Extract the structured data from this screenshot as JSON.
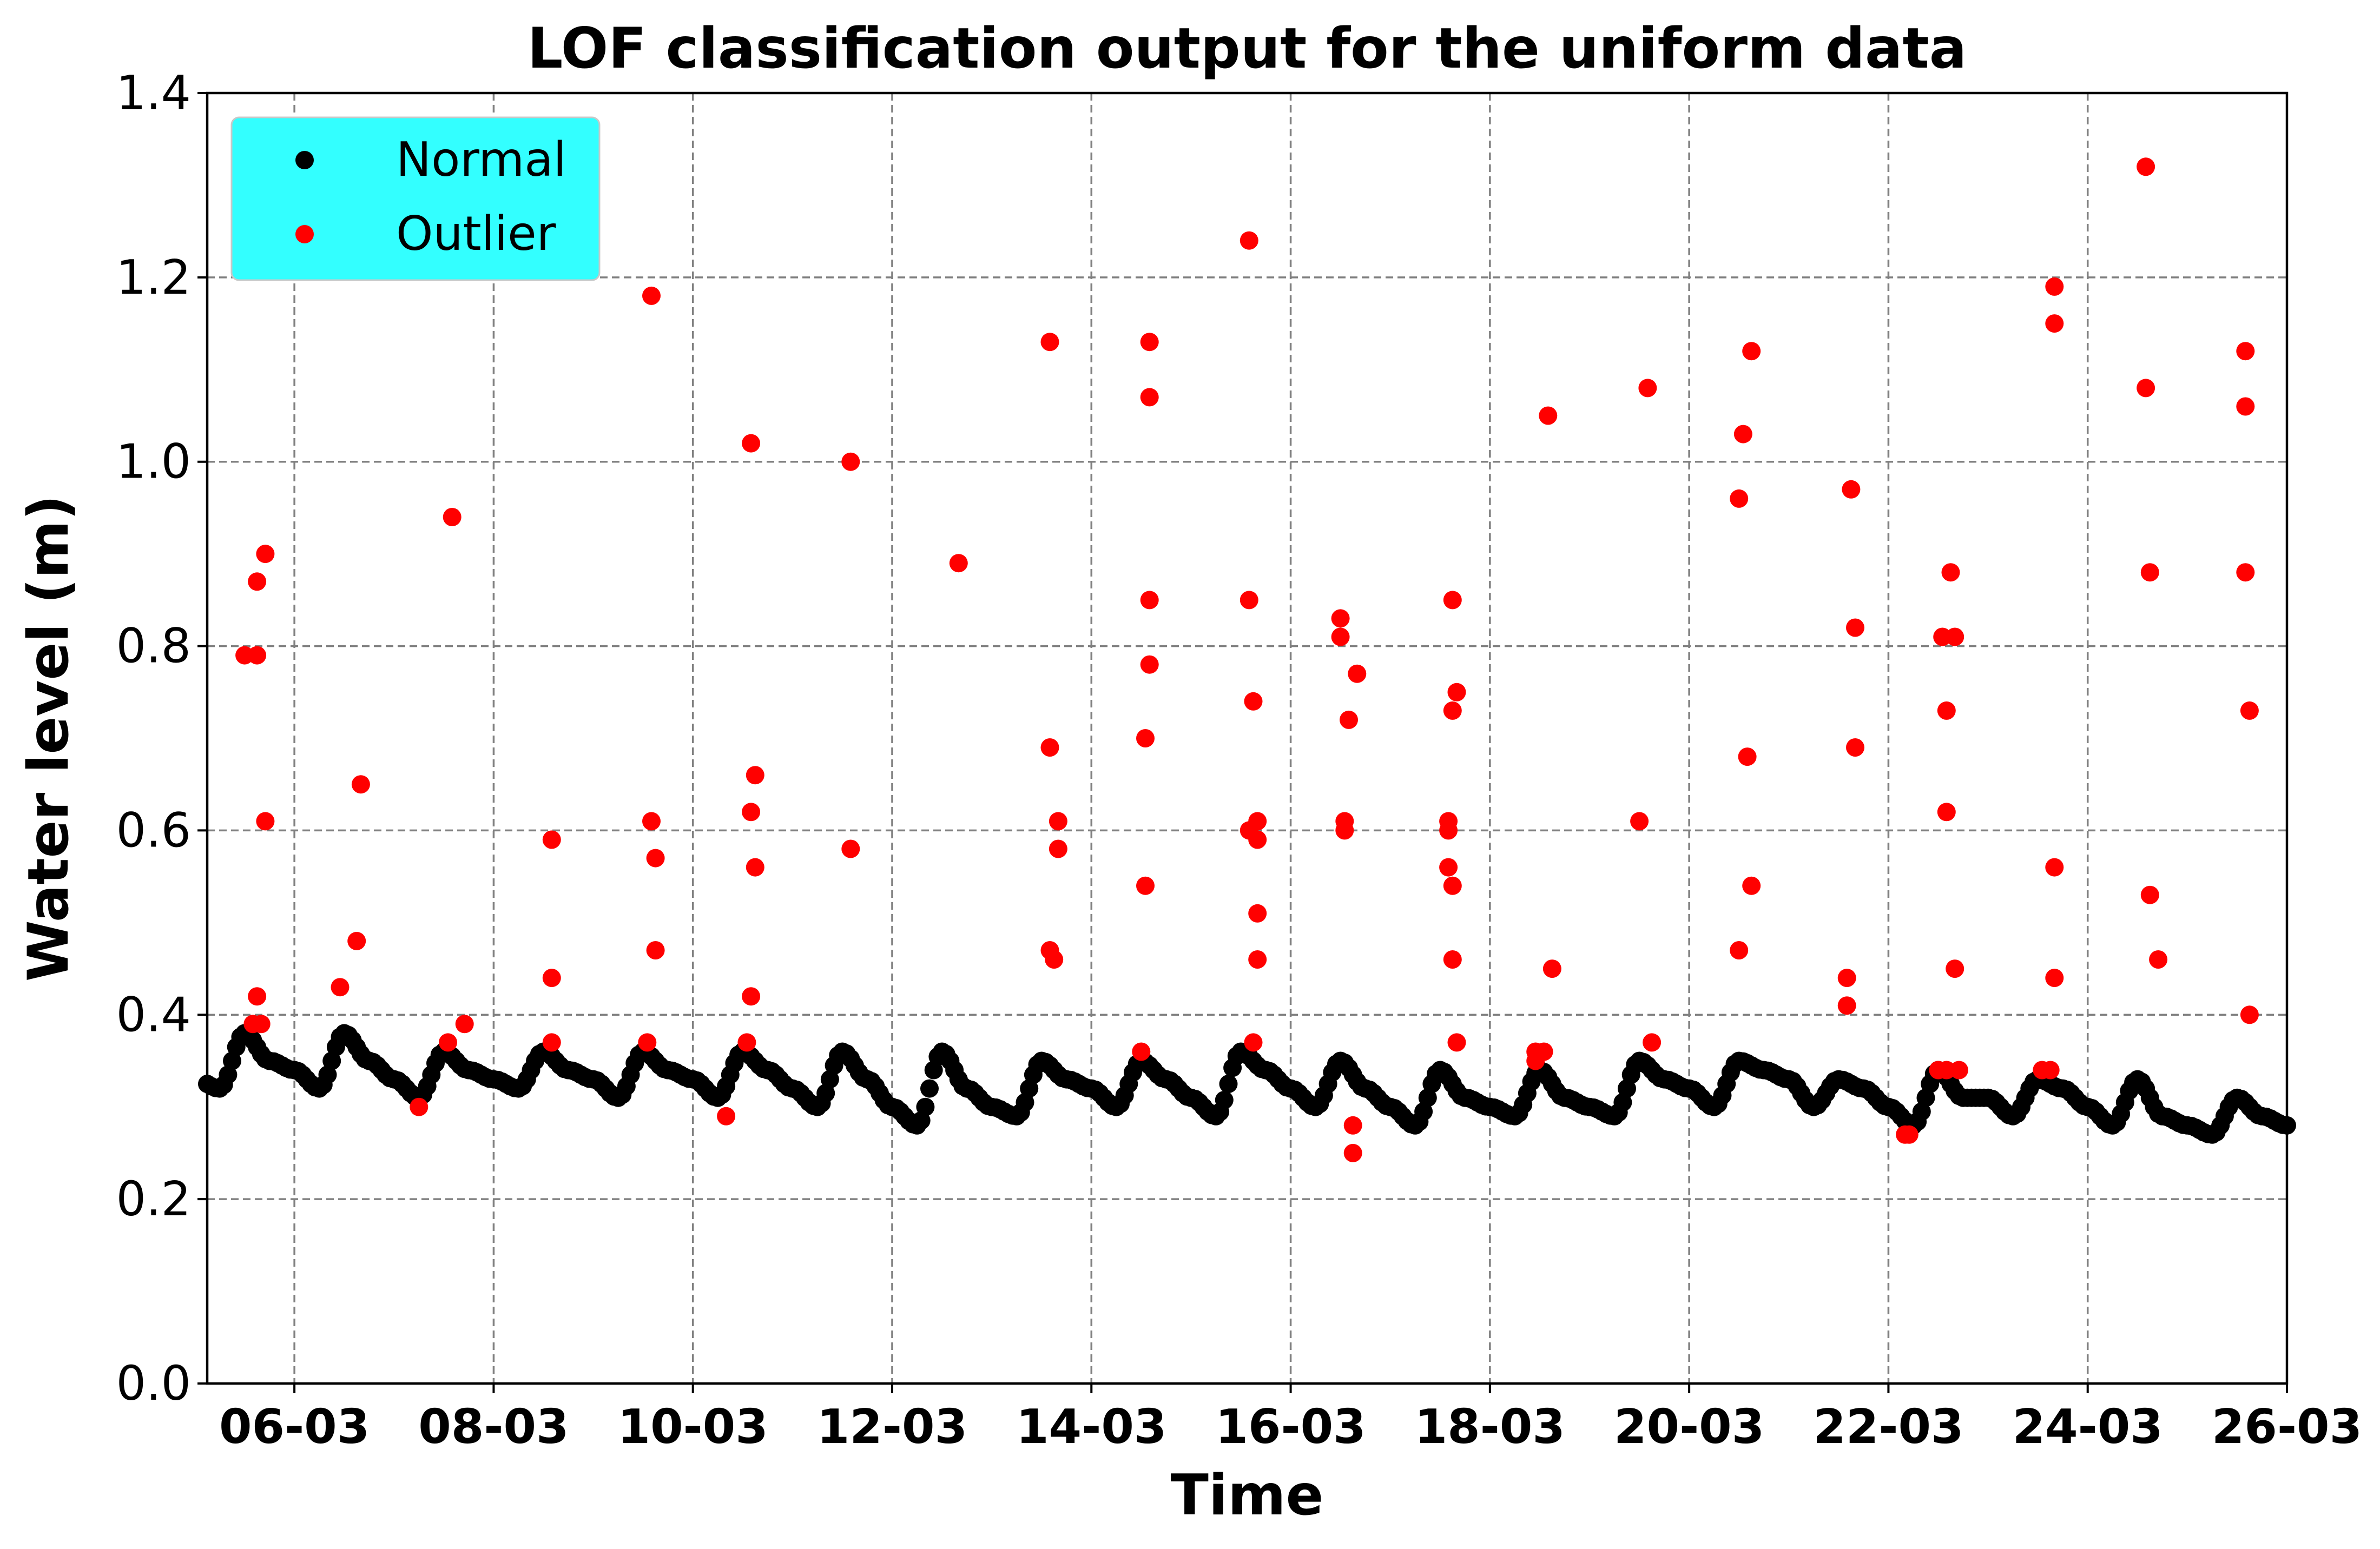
{
  "chart_data": {
    "type": "scatter",
    "title": "LOF classification output for the uniform data",
    "xlabel": "Time",
    "ylabel": "Water level (m)",
    "x_start": "05-03",
    "x_end": "26-03",
    "xlim": [
      "05-03 03:00",
      "26-03 00:00"
    ],
    "ylim": [
      0.0,
      1.4
    ],
    "yticks": [
      "0.0",
      "0.2",
      "0.4",
      "0.6",
      "0.8",
      "1.0",
      "1.2",
      "1.4"
    ],
    "xticks": [
      "06-03",
      "08-03",
      "10-03",
      "12-03",
      "14-03",
      "16-03",
      "18-03",
      "20-03",
      "22-03",
      "24-03",
      "26-03"
    ],
    "grid": true,
    "legend": {
      "placement": "top-left",
      "background": "#33ffff"
    },
    "colors": {
      "normal": "#000000",
      "outlier": "#ff0000"
    },
    "series": [
      {
        "name": "Normal",
        "color": "#000000",
        "sample_interval_hours": 1,
        "points": [
          [
            "05-03 00:00",
            0.33
          ],
          [
            "05-03 06:00",
            0.32
          ],
          [
            "05-03 12:00",
            0.38
          ],
          [
            "05-03 18:00",
            0.35
          ],
          [
            "06-03 00:00",
            0.34
          ],
          [
            "06-03 06:00",
            0.32
          ],
          [
            "06-03 12:00",
            0.38
          ],
          [
            "06-03 18:00",
            0.35
          ],
          [
            "07-03 00:00",
            0.33
          ],
          [
            "07-03 06:00",
            0.31
          ],
          [
            "07-03 12:00",
            0.36
          ],
          [
            "07-03 18:00",
            0.34
          ],
          [
            "08-03 00:00",
            0.33
          ],
          [
            "08-03 06:00",
            0.32
          ],
          [
            "08-03 12:00",
            0.36
          ],
          [
            "08-03 18:00",
            0.34
          ],
          [
            "09-03 00:00",
            0.33
          ],
          [
            "09-03 06:00",
            0.31
          ],
          [
            "09-03 12:00",
            0.36
          ],
          [
            "09-03 18:00",
            0.34
          ],
          [
            "10-03 00:00",
            0.33
          ],
          [
            "10-03 06:00",
            0.31
          ],
          [
            "10-03 12:00",
            0.36
          ],
          [
            "10-03 18:00",
            0.34
          ],
          [
            "11-03 00:00",
            0.32
          ],
          [
            "11-03 06:00",
            0.3
          ],
          [
            "11-03 12:00",
            0.36
          ],
          [
            "11-03 18:00",
            0.33
          ],
          [
            "12-03 00:00",
            0.3
          ],
          [
            "12-03 06:00",
            0.28
          ],
          [
            "12-03 12:00",
            0.36
          ],
          [
            "12-03 18:00",
            0.32
          ],
          [
            "13-03 00:00",
            0.3
          ],
          [
            "13-03 06:00",
            0.29
          ],
          [
            "13-03 12:00",
            0.35
          ],
          [
            "13-03 18:00",
            0.33
          ],
          [
            "14-03 00:00",
            0.32
          ],
          [
            "14-03 06:00",
            0.3
          ],
          [
            "14-03 12:00",
            0.35
          ],
          [
            "14-03 18:00",
            0.33
          ],
          [
            "15-03 00:00",
            0.31
          ],
          [
            "15-03 06:00",
            0.29
          ],
          [
            "15-03 12:00",
            0.36
          ],
          [
            "15-03 18:00",
            0.34
          ],
          [
            "16-03 00:00",
            0.32
          ],
          [
            "16-03 06:00",
            0.3
          ],
          [
            "16-03 12:00",
            0.35
          ],
          [
            "16-03 18:00",
            0.32
          ],
          [
            "17-03 00:00",
            0.3
          ],
          [
            "17-03 06:00",
            0.28
          ],
          [
            "17-03 12:00",
            0.34
          ],
          [
            "17-03 18:00",
            0.31
          ],
          [
            "18-03 00:00",
            0.3
          ],
          [
            "18-03 06:00",
            0.29
          ],
          [
            "18-03 12:00",
            0.34
          ],
          [
            "18-03 18:00",
            0.31
          ],
          [
            "19-03 00:00",
            0.3
          ],
          [
            "19-03 06:00",
            0.29
          ],
          [
            "19-03 12:00",
            0.35
          ],
          [
            "19-03 18:00",
            0.33
          ],
          [
            "20-03 00:00",
            0.32
          ],
          [
            "20-03 06:00",
            0.3
          ],
          [
            "20-03 12:00",
            0.35
          ],
          [
            "20-03 18:00",
            0.34
          ],
          [
            "21-03 00:00",
            0.33
          ],
          [
            "21-03 06:00",
            0.3
          ],
          [
            "21-03 12:00",
            0.33
          ],
          [
            "21-03 18:00",
            0.32
          ],
          [
            "22-03 00:00",
            0.3
          ],
          [
            "22-03 06:00",
            0.28
          ],
          [
            "22-03 12:00",
            0.34
          ],
          [
            "22-03 18:00",
            0.31
          ],
          [
            "23-03 00:00",
            0.31
          ],
          [
            "23-03 06:00",
            0.29
          ],
          [
            "23-03 12:00",
            0.33
          ],
          [
            "23-03 18:00",
            0.32
          ],
          [
            "24-03 00:00",
            0.3
          ],
          [
            "24-03 06:00",
            0.28
          ],
          [
            "24-03 12:00",
            0.33
          ],
          [
            "24-03 18:00",
            0.29
          ],
          [
            "25-03 00:00",
            0.28
          ],
          [
            "25-03 06:00",
            0.27
          ],
          [
            "25-03 12:00",
            0.31
          ],
          [
            "25-03 18:00",
            0.29
          ],
          [
            "26-03 00:00",
            0.28
          ]
        ]
      },
      {
        "name": "Outlier",
        "color": "#ff0000",
        "points": [
          [
            "05-03 12:00",
            0.79
          ],
          [
            "05-03 14:00",
            0.39
          ],
          [
            "05-03 15:00",
            0.42
          ],
          [
            "05-03 15:00",
            0.87
          ],
          [
            "05-03 15:00",
            0.79
          ],
          [
            "05-03 16:00",
            0.39
          ],
          [
            "05-03 17:00",
            0.9
          ],
          [
            "05-03 17:00",
            0.61
          ],
          [
            "06-03 11:00",
            0.43
          ],
          [
            "06-03 15:00",
            0.48
          ],
          [
            "06-03 16:00",
            0.65
          ],
          [
            "07-03 06:00",
            0.3
          ],
          [
            "07-03 13:00",
            0.37
          ],
          [
            "07-03 14:00",
            0.94
          ],
          [
            "07-03 17:00",
            0.39
          ],
          [
            "08-03 14:00",
            0.37
          ],
          [
            "08-03 14:00",
            0.59
          ],
          [
            "08-03 14:00",
            0.44
          ],
          [
            "09-03 13:00",
            0.37
          ],
          [
            "09-03 14:00",
            0.61
          ],
          [
            "09-03 14:00",
            1.18
          ],
          [
            "09-03 15:00",
            0.47
          ],
          [
            "09-03 15:00",
            0.57
          ],
          [
            "10-03 08:00",
            0.29
          ],
          [
            "10-03 13:00",
            0.37
          ],
          [
            "10-03 14:00",
            0.62
          ],
          [
            "10-03 14:00",
            1.02
          ],
          [
            "10-03 14:00",
            0.42
          ],
          [
            "10-03 15:00",
            0.56
          ],
          [
            "10-03 15:00",
            0.66
          ],
          [
            "11-03 14:00",
            1.0
          ],
          [
            "11-03 14:00",
            0.58
          ],
          [
            "12-03 16:00",
            0.89
          ],
          [
            "13-03 14:00",
            1.13
          ],
          [
            "13-03 14:00",
            0.47
          ],
          [
            "13-03 14:00",
            0.69
          ],
          [
            "13-03 15:00",
            0.46
          ],
          [
            "13-03 16:00",
            0.61
          ],
          [
            "13-03 16:00",
            0.58
          ],
          [
            "14-03 12:00",
            0.36
          ],
          [
            "14-03 13:00",
            0.7
          ],
          [
            "14-03 13:00",
            0.54
          ],
          [
            "14-03 14:00",
            0.85
          ],
          [
            "14-03 14:00",
            0.78
          ],
          [
            "14-03 14:00",
            1.07
          ],
          [
            "14-03 14:00",
            1.13
          ],
          [
            "15-03 14:00",
            1.24
          ],
          [
            "15-03 14:00",
            0.85
          ],
          [
            "15-03 14:00",
            0.6
          ],
          [
            "15-03 15:00",
            0.74
          ],
          [
            "15-03 15:00",
            0.37
          ],
          [
            "15-03 16:00",
            0.61
          ],
          [
            "15-03 16:00",
            0.59
          ],
          [
            "15-03 16:00",
            0.51
          ],
          [
            "15-03 16:00",
            0.46
          ],
          [
            "16-03 12:00",
            0.83
          ],
          [
            "16-03 12:00",
            0.81
          ],
          [
            "16-03 13:00",
            0.61
          ],
          [
            "16-03 13:00",
            0.6
          ],
          [
            "16-03 14:00",
            0.72
          ],
          [
            "16-03 15:00",
            0.28
          ],
          [
            "16-03 15:00",
            0.25
          ],
          [
            "16-03 16:00",
            0.77
          ],
          [
            "17-03 14:00",
            0.56
          ],
          [
            "17-03 14:00",
            0.6
          ],
          [
            "17-03 14:00",
            0.61
          ],
          [
            "17-03 15:00",
            0.85
          ],
          [
            "17-03 15:00",
            0.73
          ],
          [
            "17-03 15:00",
            0.54
          ],
          [
            "17-03 15:00",
            0.46
          ],
          [
            "17-03 16:00",
            0.37
          ],
          [
            "17-03 16:00",
            0.75
          ],
          [
            "18-03 11:00",
            0.35
          ],
          [
            "18-03 11:00",
            0.36
          ],
          [
            "18-03 13:00",
            0.36
          ],
          [
            "18-03 14:00",
            1.05
          ],
          [
            "18-03 15:00",
            0.45
          ],
          [
            "19-03 12:00",
            0.61
          ],
          [
            "19-03 14:00",
            1.08
          ],
          [
            "19-03 15:00",
            0.37
          ],
          [
            "20-03 12:00",
            0.47
          ],
          [
            "20-03 12:00",
            0.96
          ],
          [
            "20-03 13:00",
            1.03
          ],
          [
            "20-03 14:00",
            0.68
          ],
          [
            "20-03 15:00",
            0.54
          ],
          [
            "20-03 15:00",
            1.12
          ],
          [
            "21-03 14:00",
            0.44
          ],
          [
            "21-03 14:00",
            0.41
          ],
          [
            "21-03 15:00",
            0.97
          ],
          [
            "21-03 16:00",
            0.82
          ],
          [
            "21-03 16:00",
            0.69
          ],
          [
            "22-03 04:00",
            0.27
          ],
          [
            "22-03 05:00",
            0.27
          ],
          [
            "22-03 12:00",
            0.34
          ],
          [
            "22-03 13:00",
            0.81
          ],
          [
            "22-03 14:00",
            0.73
          ],
          [
            "22-03 14:00",
            0.62
          ],
          [
            "22-03 14:00",
            0.34
          ],
          [
            "22-03 15:00",
            0.88
          ],
          [
            "22-03 16:00",
            0.81
          ],
          [
            "22-03 16:00",
            0.45
          ],
          [
            "22-03 17:00",
            0.34
          ],
          [
            "23-03 13:00",
            0.34
          ],
          [
            "23-03 15:00",
            0.34
          ],
          [
            "23-03 16:00",
            1.19
          ],
          [
            "23-03 16:00",
            1.15
          ],
          [
            "23-03 16:00",
            0.56
          ],
          [
            "23-03 16:00",
            0.44
          ],
          [
            "24-03 14:00",
            1.32
          ],
          [
            "24-03 14:00",
            1.08
          ],
          [
            "24-03 15:00",
            0.88
          ],
          [
            "24-03 15:00",
            0.53
          ],
          [
            "24-03 17:00",
            0.46
          ],
          [
            "25-03 14:00",
            1.12
          ],
          [
            "25-03 14:00",
            1.06
          ],
          [
            "25-03 14:00",
            0.88
          ],
          [
            "25-03 15:00",
            0.73
          ],
          [
            "25-03 15:00",
            0.4
          ]
        ]
      }
    ]
  }
}
